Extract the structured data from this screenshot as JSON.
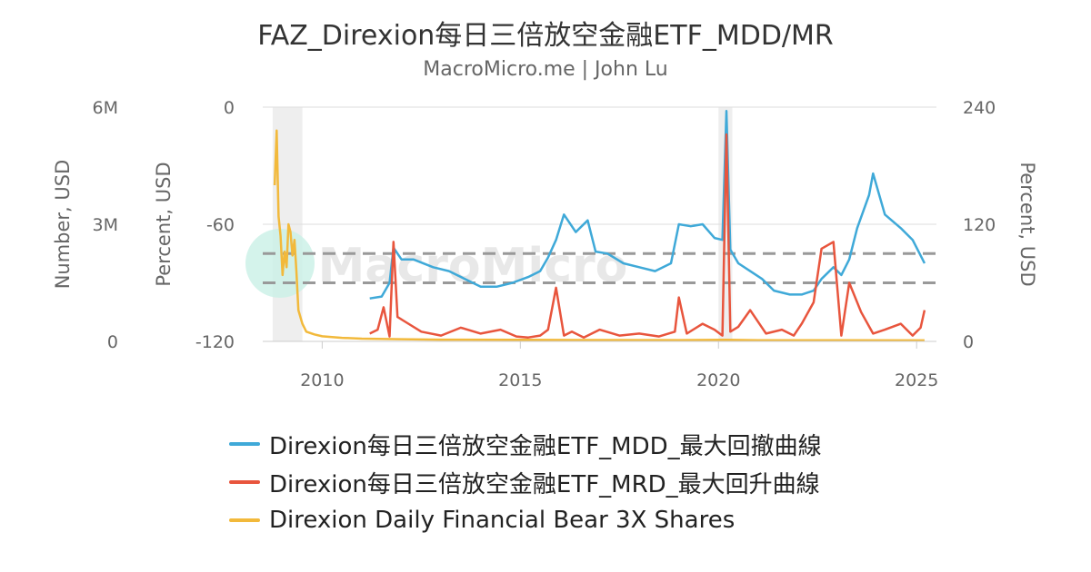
{
  "chart_data": {
    "type": "line",
    "title": "FAZ_Direxion每日三倍放空金融ETF_MDD/MR",
    "subtitle": "MacroMicro.me | John Lu",
    "watermark": "MacroMicro",
    "axes": {
      "left_outer": {
        "label": "Number, USD",
        "range": [
          0,
          6000000
        ],
        "ticks": [
          "0",
          "3M",
          "6M"
        ],
        "tick_values": [
          0,
          3000000,
          6000000
        ]
      },
      "left_inner": {
        "label": "Percent, USD",
        "range": [
          -120,
          0
        ],
        "ticks": [
          "-120",
          "-60",
          "0"
        ],
        "tick_values": [
          -120,
          -60,
          0
        ]
      },
      "right": {
        "label": "Percent, USD",
        "range": [
          0,
          240
        ],
        "ticks": [
          "0",
          "120",
          "240"
        ],
        "tick_values": [
          0,
          120,
          240
        ]
      },
      "x": {
        "range": [
          2008.5,
          2025.5
        ],
        "ticks": [
          "2010",
          "2015",
          "2020",
          "2025"
        ],
        "tick_values": [
          2010,
          2015,
          2020,
          2025
        ]
      }
    },
    "grid": true,
    "shaded_periods": [
      [
        2008.75,
        2009.5
      ],
      [
        2020.0,
        2020.35
      ]
    ],
    "reference_lines": [
      {
        "axis": "left_inner",
        "value": -75,
        "style": "dashed"
      },
      {
        "axis": "left_inner",
        "value": -90,
        "style": "dashed"
      }
    ],
    "legend_position": "bottom",
    "series": [
      {
        "name": "Direxion每日三倍放空金融ETF_MDD_最大回撤曲線",
        "color": "#3fa9d8",
        "axis": "left_inner",
        "x": [
          2011.2,
          2011.5,
          2011.7,
          2011.8,
          2012.0,
          2012.3,
          2012.8,
          2013.2,
          2013.6,
          2014.0,
          2014.4,
          2014.8,
          2015.2,
          2015.5,
          2015.7,
          2015.9,
          2016.1,
          2016.4,
          2016.7,
          2016.9,
          2017.2,
          2017.6,
          2018.0,
          2018.4,
          2018.8,
          2019.0,
          2019.3,
          2019.6,
          2019.9,
          2020.1,
          2020.2,
          2020.3,
          2020.5,
          2020.8,
          2021.1,
          2021.4,
          2021.8,
          2022.1,
          2022.4,
          2022.6,
          2022.9,
          2023.1,
          2023.3,
          2023.5,
          2023.8,
          2023.9,
          2024.2,
          2024.6,
          2024.9,
          2025.1,
          2025.2
        ],
        "y": [
          -98,
          -97,
          -90,
          -72,
          -78,
          -78,
          -82,
          -84,
          -88,
          -92,
          -92,
          -90,
          -87,
          -84,
          -77,
          -68,
          -55,
          -64,
          -58,
          -74,
          -75,
          -80,
          -82,
          -84,
          -80,
          -60,
          -61,
          -60,
          -67,
          -68,
          -2,
          -73,
          -80,
          -84,
          -88,
          -94,
          -96,
          -96,
          -94,
          -88,
          -82,
          -86,
          -78,
          -62,
          -45,
          -34,
          -55,
          -62,
          -68,
          -76,
          -80
        ]
      },
      {
        "name": "Direxion每日三倍放空金融ETF_MRD_最大回升曲線",
        "color": "#e8553d",
        "axis": "right",
        "x": [
          2011.2,
          2011.4,
          2011.55,
          2011.7,
          2011.8,
          2011.9,
          2012.1,
          2012.5,
          2013.0,
          2013.5,
          2014.0,
          2014.5,
          2014.9,
          2015.2,
          2015.5,
          2015.7,
          2015.9,
          2016.1,
          2016.3,
          2016.6,
          2017.0,
          2017.5,
          2018.0,
          2018.5,
          2018.9,
          2019.0,
          2019.2,
          2019.6,
          2019.9,
          2020.1,
          2020.2,
          2020.3,
          2020.5,
          2020.8,
          2021.2,
          2021.6,
          2021.9,
          2022.1,
          2022.4,
          2022.6,
          2022.9,
          2023.1,
          2023.3,
          2023.6,
          2023.9,
          2024.2,
          2024.6,
          2024.9,
          2025.1,
          2025.2
        ],
        "y": [
          8,
          12,
          35,
          5,
          102,
          25,
          20,
          10,
          6,
          14,
          8,
          12,
          5,
          4,
          6,
          12,
          55,
          6,
          10,
          4,
          12,
          6,
          8,
          5,
          10,
          45,
          8,
          18,
          12,
          6,
          212,
          10,
          15,
          32,
          8,
          12,
          6,
          18,
          40,
          95,
          102,
          6,
          60,
          30,
          8,
          12,
          18,
          6,
          14,
          32
        ]
      },
      {
        "name": "Direxion Daily Financial Bear 3X Shares",
        "color": "#f2b93b",
        "axis": "left_outer",
        "x": [
          2008.8,
          2008.85,
          2008.9,
          2008.95,
          2009.0,
          2009.05,
          2009.1,
          2009.15,
          2009.2,
          2009.25,
          2009.3,
          2009.35,
          2009.4,
          2009.5,
          2009.6,
          2009.8,
          2010.0,
          2010.5,
          2011.0,
          2012.0,
          2013.0,
          2015.0,
          2017.0,
          2019.0,
          2020.2,
          2021.0,
          2023.0,
          2025.2
        ],
        "y": [
          4000000,
          5400000,
          3200000,
          2700000,
          1700000,
          2300000,
          1900000,
          3000000,
          2800000,
          2200000,
          2600000,
          1800000,
          800000,
          450000,
          250000,
          180000,
          130000,
          90000,
          70000,
          55000,
          45000,
          40000,
          35000,
          32000,
          40000,
          30000,
          28000,
          25000
        ]
      }
    ]
  }
}
